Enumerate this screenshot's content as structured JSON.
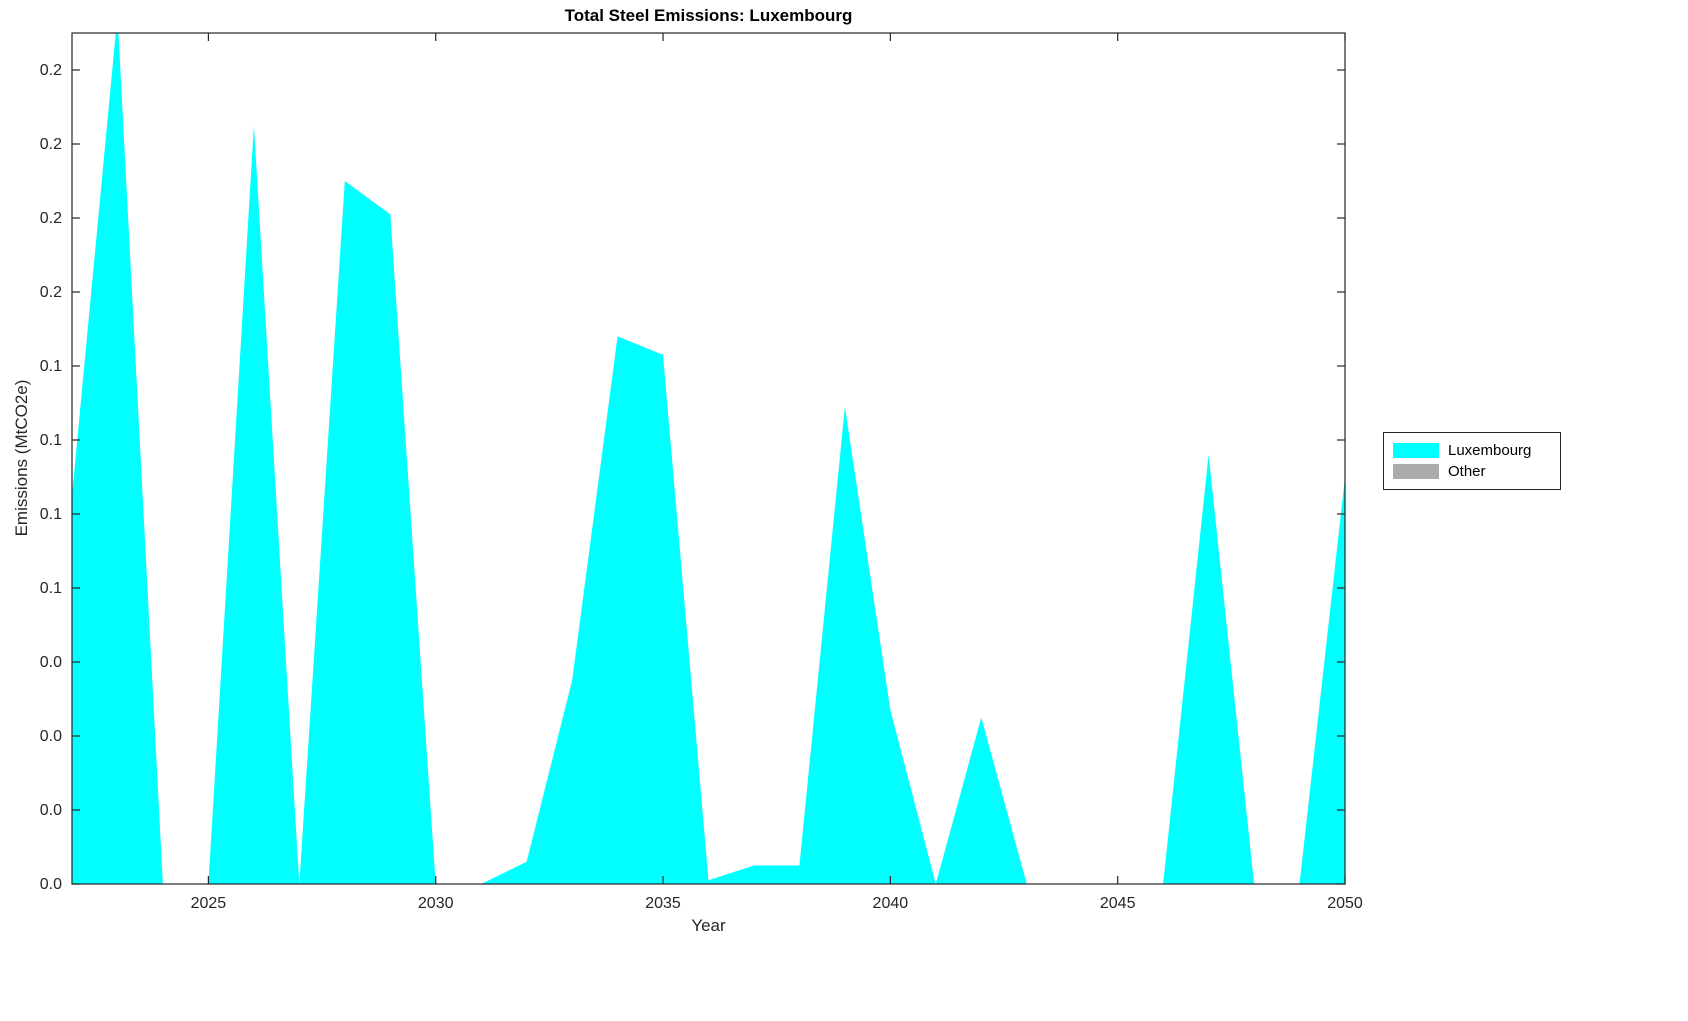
{
  "chart_data": {
    "type": "area",
    "title": "Total Steel Emissions: Luxembourg",
    "xlabel": "Year",
    "ylabel": "Emissions (MtCO2e)",
    "xlim": [
      2022,
      2050
    ],
    "ylim": [
      0,
      0.23
    ],
    "xticks": [
      2025,
      2030,
      2035,
      2040,
      2045,
      2050
    ],
    "yticks": [
      0,
      0.02,
      0.04,
      0.06,
      0.08,
      0.1,
      0.12,
      0.14,
      0.16,
      0.18,
      0.2,
      0.22
    ],
    "ytick_labels": [
      "0.0",
      "0.0",
      "0.0",
      "0.0",
      "0.1",
      "0.1",
      "0.1",
      "0.1",
      "0.2",
      "0.2",
      "0.2",
      "0.2"
    ],
    "grid": false,
    "legend_position": "right-outside",
    "x": [
      2022,
      2023,
      2024,
      2025,
      2026,
      2027,
      2028,
      2029,
      2030,
      2031,
      2032,
      2033,
      2034,
      2035,
      2036,
      2037,
      2038,
      2039,
      2040,
      2041,
      2042,
      2043,
      2044,
      2045,
      2046,
      2047,
      2048,
      2049,
      2050
    ],
    "series": [
      {
        "name": "Luxembourg",
        "color": "#00FFFF",
        "values": [
          0.105,
          0.235,
          0,
          0,
          0.205,
          0,
          0.19,
          0.181,
          0,
          0,
          0.006,
          0.055,
          0.148,
          0.143,
          0.001,
          0.005,
          0.005,
          0.129,
          0.047,
          0,
          0.045,
          0,
          0,
          0,
          0,
          0.116,
          0,
          0,
          0.11
        ]
      },
      {
        "name": "Other",
        "color": "#ABABAB",
        "values": [
          0,
          0,
          0,
          0,
          0,
          0,
          0,
          0,
          0,
          0,
          0,
          0,
          0,
          0,
          0,
          0,
          0,
          0,
          0,
          0,
          0,
          0,
          0,
          0,
          0,
          0,
          0,
          0,
          0
        ]
      }
    ]
  }
}
